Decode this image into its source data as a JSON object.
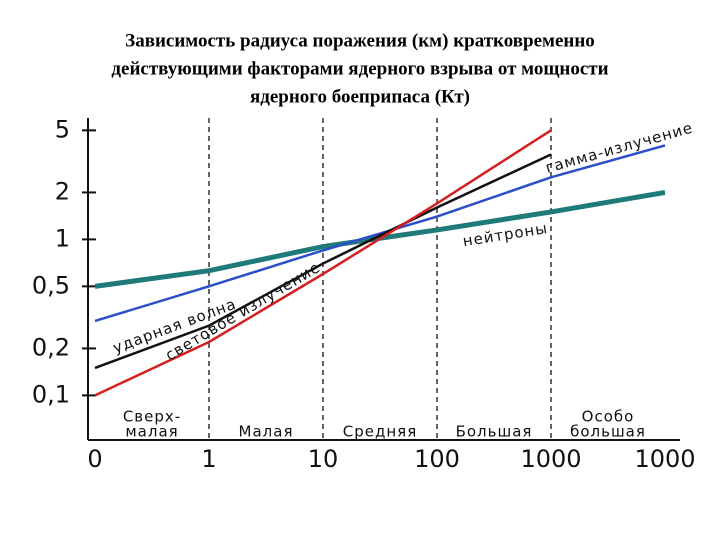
{
  "chart_data": {
    "type": "line",
    "title": [
      "Зависимость радиуса поражения (км) кратковременно",
      "действующими факторами ядерного взрыва от мощности",
      "ядерного боеприпаса (Кт)"
    ],
    "categories": [
      "0",
      "1",
      "10",
      "100",
      "1000",
      "1000"
    ],
    "bands": [
      [
        "Сверх-",
        "малая"
      ],
      [
        "Малая"
      ],
      [
        "Средняя"
      ],
      [
        "Большая"
      ],
      [
        "Особо",
        "большая"
      ]
    ],
    "ylim": [
      0.06,
      6
    ],
    "log_y": true,
    "yticks": [
      {
        "value": 0.1,
        "label": "0,1"
      },
      {
        "value": 0.2,
        "label": "0,2"
      },
      {
        "value": 0.5,
        "label": "0,5"
      },
      1,
      2,
      5
    ],
    "series": [
      {
        "name": "нейтроны",
        "color": "#1f7a7a",
        "values": [
          0.5,
          0.63,
          0.9,
          1.15,
          1.5,
          2
        ]
      },
      {
        "name": "гамма-излучение",
        "color": "#2a4fc9",
        "values": [
          0.3,
          0.5,
          0.85,
          1.4,
          2.5,
          4
        ]
      },
      {
        "name": "ударная волна",
        "color": "#111111",
        "values": [
          0.15,
          0.28,
          0.7,
          1.6,
          3.5,
          null
        ]
      },
      {
        "name": "световое излучение",
        "color": "#d42020",
        "values": [
          0.1,
          0.22,
          0.6,
          1.7,
          5,
          null
        ]
      }
    ]
  }
}
